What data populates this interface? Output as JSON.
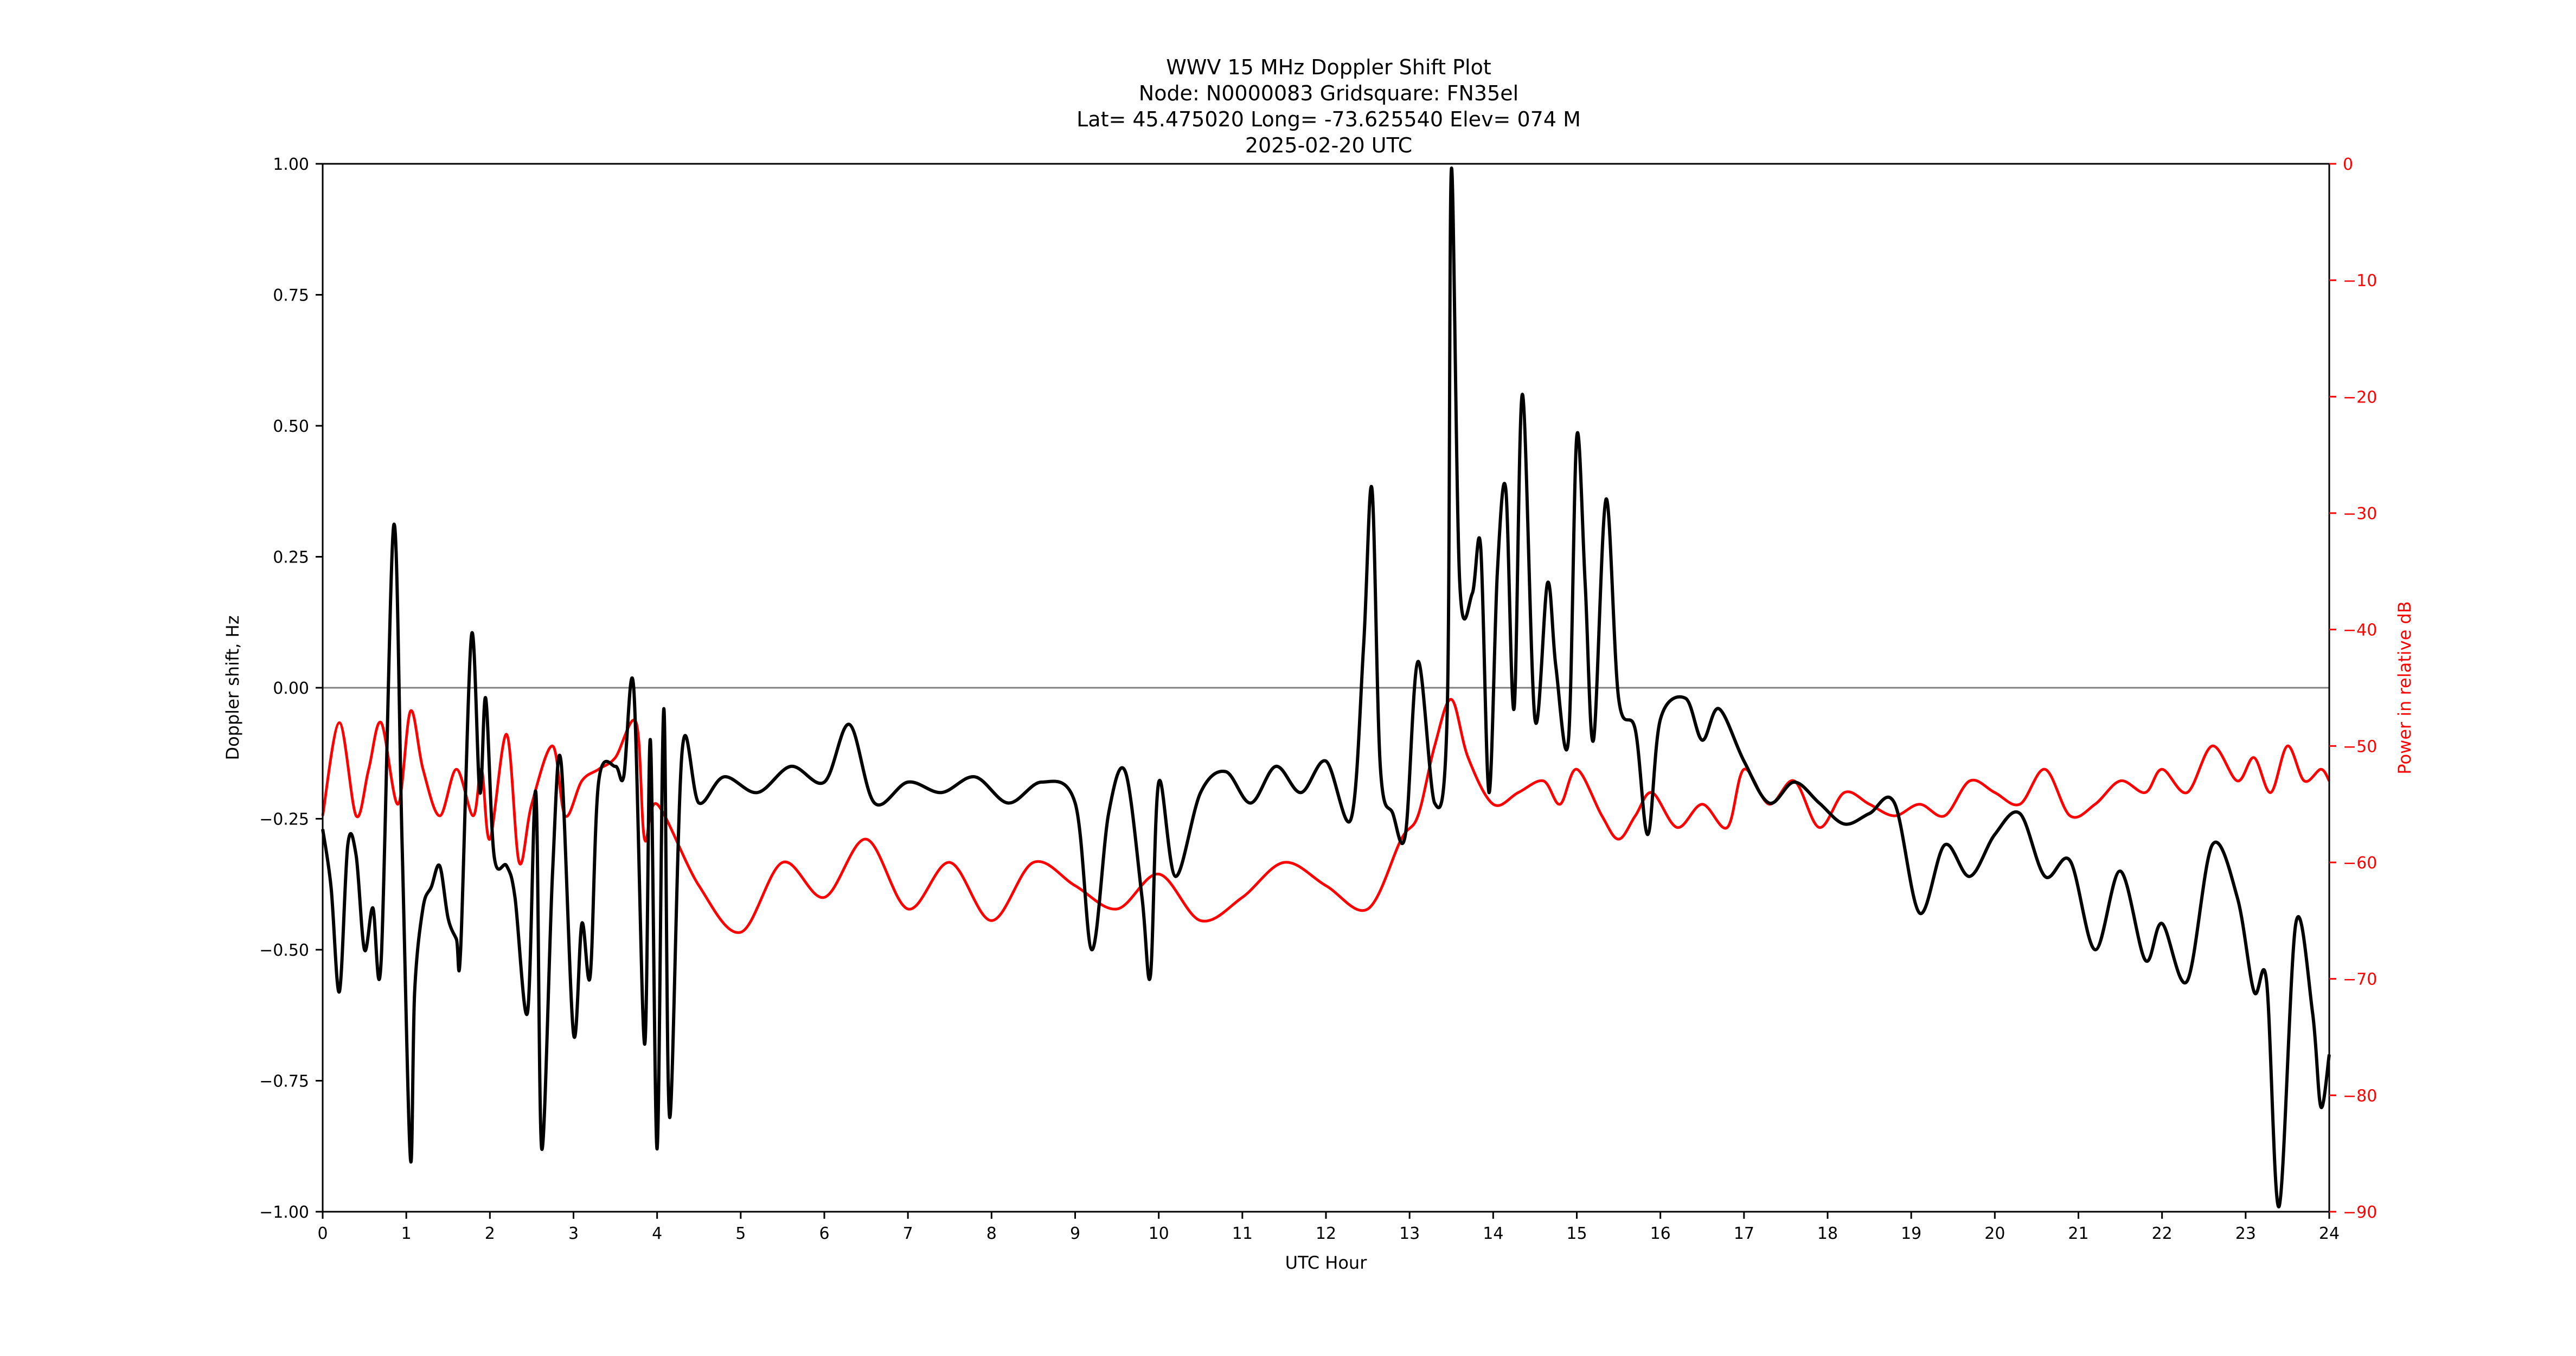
{
  "chart_data": {
    "type": "line",
    "title_lines": [
      "WWV 15 MHz Doppler Shift Plot",
      "Node:  N0000083     Gridsquare:  FN35el",
      "Lat= 45.475020    Long= -73.625540    Elev= 074 M",
      "2025-02-20  UTC"
    ],
    "xlabel": "UTC Hour",
    "ylabel_left": "Doppler shift, Hz",
    "ylabel_right": "Power in relative dB",
    "xlim": [
      0,
      24
    ],
    "ylim_left": [
      -1.0,
      1.0
    ],
    "ylim_right": [
      -90,
      0
    ],
    "x_ticks": [
      "0",
      "1",
      "2",
      "3",
      "4",
      "5",
      "6",
      "7",
      "8",
      "9",
      "10",
      "11",
      "12",
      "13",
      "14",
      "15",
      "16",
      "17",
      "18",
      "19",
      "20",
      "21",
      "22",
      "23",
      "24"
    ],
    "y_left_ticks": [
      "1.00",
      "0.75",
      "0.50",
      "0.25",
      "0.00",
      "−0.25",
      "−0.50",
      "−0.75",
      "−1.00"
    ],
    "y_right_ticks": [
      "0",
      "−10",
      "−20",
      "−30",
      "−40",
      "−50",
      "−60",
      "−70",
      "−80",
      "−90"
    ],
    "zero_line": 0,
    "grid": false,
    "colors": {
      "doppler": "#000000",
      "power": "#ff0000",
      "zero_line": "#808080",
      "right_axis": "#ff0000"
    },
    "series": [
      {
        "axis": "left",
        "color": "#000000",
        "x": [
          0,
          0.1,
          0.2,
          0.3,
          0.4,
          0.5,
          0.6,
          0.7,
          0.85,
          0.95,
          1.05,
          1.1,
          1.2,
          1.3,
          1.4,
          1.5,
          1.6,
          1.65,
          1.78,
          1.88,
          1.95,
          2.05,
          2.2,
          2.3,
          2.45,
          2.55,
          2.62,
          2.75,
          2.85,
          3.0,
          3.1,
          3.2,
          3.3,
          3.5,
          3.6,
          3.72,
          3.85,
          3.92,
          4.0,
          4.08,
          4.15,
          4.3,
          4.5,
          4.8,
          5.2,
          5.6,
          6.0,
          6.3,
          6.6,
          7.0,
          7.4,
          7.8,
          8.2,
          8.6,
          9.0,
          9.2,
          9.4,
          9.6,
          9.8,
          9.9,
          10.0,
          10.2,
          10.5,
          10.8,
          11.1,
          11.4,
          11.7,
          12.0,
          12.3,
          12.45,
          12.55,
          12.65,
          12.8,
          12.95,
          13.1,
          13.3,
          13.45,
          13.5,
          13.6,
          13.75,
          13.85,
          13.95,
          14.05,
          14.15,
          14.25,
          14.35,
          14.5,
          14.65,
          14.75,
          14.9,
          15.0,
          15.1,
          15.2,
          15.35,
          15.5,
          15.7,
          15.85,
          16.0,
          16.3,
          16.5,
          16.7,
          17.0,
          17.3,
          17.6,
          17.9,
          18.2,
          18.5,
          18.8,
          19.1,
          19.4,
          19.7,
          20.0,
          20.3,
          20.6,
          20.9,
          21.2,
          21.5,
          21.8,
          22.0,
          22.3,
          22.6,
          22.9,
          23.1,
          23.25,
          23.4,
          23.6,
          23.8,
          23.9,
          24.0
        ],
        "y": [
          -0.27,
          -0.38,
          -0.58,
          -0.3,
          -0.32,
          -0.5,
          -0.42,
          -0.52,
          0.31,
          -0.3,
          -0.9,
          -0.58,
          -0.42,
          -0.38,
          -0.34,
          -0.44,
          -0.48,
          -0.5,
          0.1,
          -0.2,
          -0.02,
          -0.32,
          -0.34,
          -0.4,
          -0.62,
          -0.2,
          -0.88,
          -0.35,
          -0.14,
          -0.66,
          -0.45,
          -0.55,
          -0.18,
          -0.15,
          -0.17,
          0.0,
          -0.68,
          -0.1,
          -0.88,
          -0.04,
          -0.82,
          -0.12,
          -0.22,
          -0.17,
          -0.2,
          -0.15,
          -0.18,
          -0.07,
          -0.22,
          -0.18,
          -0.2,
          -0.17,
          -0.22,
          -0.18,
          -0.22,
          -0.5,
          -0.24,
          -0.16,
          -0.4,
          -0.55,
          -0.18,
          -0.36,
          -0.2,
          -0.16,
          -0.22,
          -0.15,
          -0.2,
          -0.14,
          -0.25,
          0.08,
          0.38,
          -0.15,
          -0.24,
          -0.28,
          0.05,
          -0.22,
          -0.05,
          0.99,
          0.2,
          0.18,
          0.27,
          -0.2,
          0.22,
          0.38,
          -0.04,
          0.56,
          -0.06,
          0.2,
          0.04,
          -0.1,
          0.48,
          0.2,
          -0.1,
          0.36,
          -0.02,
          -0.08,
          -0.28,
          -0.06,
          -0.02,
          -0.1,
          -0.04,
          -0.14,
          -0.22,
          -0.18,
          -0.22,
          -0.26,
          -0.24,
          -0.22,
          -0.43,
          -0.3,
          -0.36,
          -0.28,
          -0.24,
          -0.36,
          -0.33,
          -0.5,
          -0.35,
          -0.52,
          -0.45,
          -0.56,
          -0.3,
          -0.4,
          -0.58,
          -0.56,
          -0.99,
          -0.45,
          -0.62,
          -0.8,
          -0.7
        ],
        "note": "approximate trace read from plot"
      },
      {
        "axis": "right",
        "color": "#ff0000",
        "x": [
          0,
          0.2,
          0.4,
          0.55,
          0.7,
          0.9,
          1.05,
          1.2,
          1.4,
          1.6,
          1.8,
          1.9,
          2.0,
          2.2,
          2.35,
          2.5,
          2.75,
          2.9,
          3.1,
          3.3,
          3.5,
          3.75,
          3.85,
          4.0,
          4.5,
          5.0,
          5.5,
          6.0,
          6.5,
          7.0,
          7.5,
          8.0,
          8.5,
          9.0,
          9.5,
          10.0,
          10.5,
          11.0,
          11.5,
          12.0,
          12.5,
          12.9,
          13.1,
          13.3,
          13.5,
          13.7,
          14.0,
          14.3,
          14.6,
          14.8,
          15.0,
          15.3,
          15.5,
          15.7,
          15.9,
          16.2,
          16.5,
          16.8,
          17.0,
          17.3,
          17.6,
          17.9,
          18.2,
          18.5,
          18.8,
          19.1,
          19.4,
          19.7,
          20.0,
          20.3,
          20.6,
          20.9,
          21.2,
          21.5,
          21.8,
          22.0,
          22.3,
          22.6,
          22.9,
          23.1,
          23.3,
          23.5,
          23.7,
          23.9,
          24.0
        ],
        "y": [
          -56,
          -48,
          -56,
          -52,
          -48,
          -55,
          -47,
          -52,
          -56,
          -52,
          -56,
          -52,
          -58,
          -49,
          -60,
          -55,
          -50,
          -56,
          -53,
          -52,
          -51,
          -48,
          -58,
          -55,
          -62,
          -66,
          -60,
          -63,
          -58,
          -64,
          -60,
          -65,
          -60,
          -62,
          -64,
          -61,
          -65,
          -63,
          -60,
          -62,
          -64,
          -58,
          -56,
          -50,
          -46,
          -51,
          -55,
          -54,
          -53,
          -55,
          -52,
          -56,
          -58,
          -56,
          -54,
          -57,
          -55,
          -57,
          -52,
          -55,
          -53,
          -57,
          -54,
          -55,
          -56,
          -55,
          -56,
          -53,
          -54,
          -55,
          -52,
          -56,
          -55,
          -53,
          -54,
          -52,
          -54,
          -50,
          -53,
          -51,
          -54,
          -50,
          -53,
          -52,
          -53
        ],
        "note": "approximate trace read from plot"
      }
    ]
  }
}
